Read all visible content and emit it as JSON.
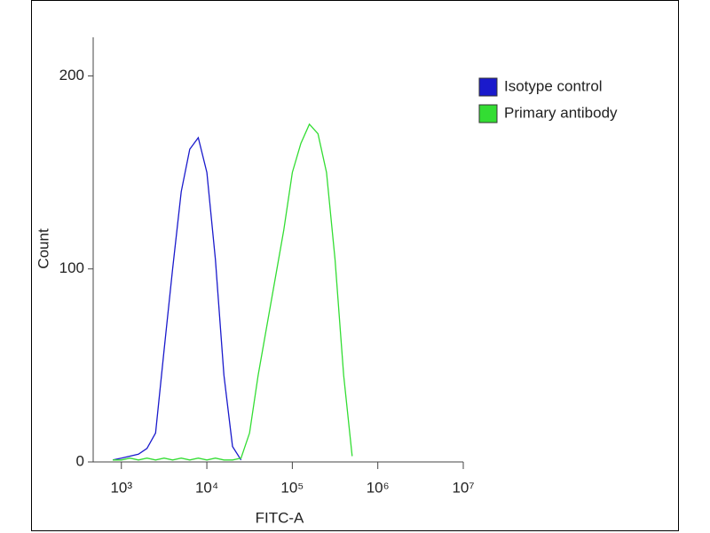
{
  "chart_data": {
    "type": "line",
    "xlabel": "FITC-A",
    "ylabel": "Count",
    "xscale": "log",
    "x": [
      794,
      1000,
      1259,
      1585,
      1995,
      2512,
      3162,
      3981,
      5012,
      6310,
      7943,
      10000,
      12589,
      15849,
      19953,
      25119,
      31623,
      39811,
      50119,
      63096,
      79433,
      100000,
      125893,
      158489,
      199526,
      251189,
      316228,
      398107,
      501187
    ],
    "series": [
      {
        "name": "Isotype control",
        "color": "#1a1acc",
        "values": [
          1,
          2,
          3,
          4,
          7,
          15,
          58,
          100,
          140,
          162,
          168,
          150,
          105,
          45,
          8,
          1,
          null,
          null,
          null,
          null,
          null,
          null,
          null,
          null,
          null,
          null,
          null,
          null,
          null
        ]
      },
      {
        "name": "Primary antibody",
        "color": "#33dd33",
        "values": [
          1,
          1,
          2,
          1,
          2,
          1,
          2,
          1,
          2,
          1,
          2,
          1,
          2,
          1,
          1,
          2,
          15,
          45,
          70,
          95,
          120,
          150,
          165,
          175,
          170,
          150,
          105,
          45,
          3
        ]
      }
    ],
    "xlim": [
      468,
      10000000
    ],
    "xticks": [
      {
        "value": 1000,
        "label": "10³"
      },
      {
        "value": 10000,
        "label": "10⁴"
      },
      {
        "value": 100000,
        "label": "10⁵"
      },
      {
        "value": 1000000,
        "label": "10⁶"
      },
      {
        "value": 10000000,
        "label": "10⁷"
      }
    ],
    "ylim": [
      0,
      220
    ],
    "yticks": [
      0,
      100,
      200
    ],
    "legend": "right"
  }
}
